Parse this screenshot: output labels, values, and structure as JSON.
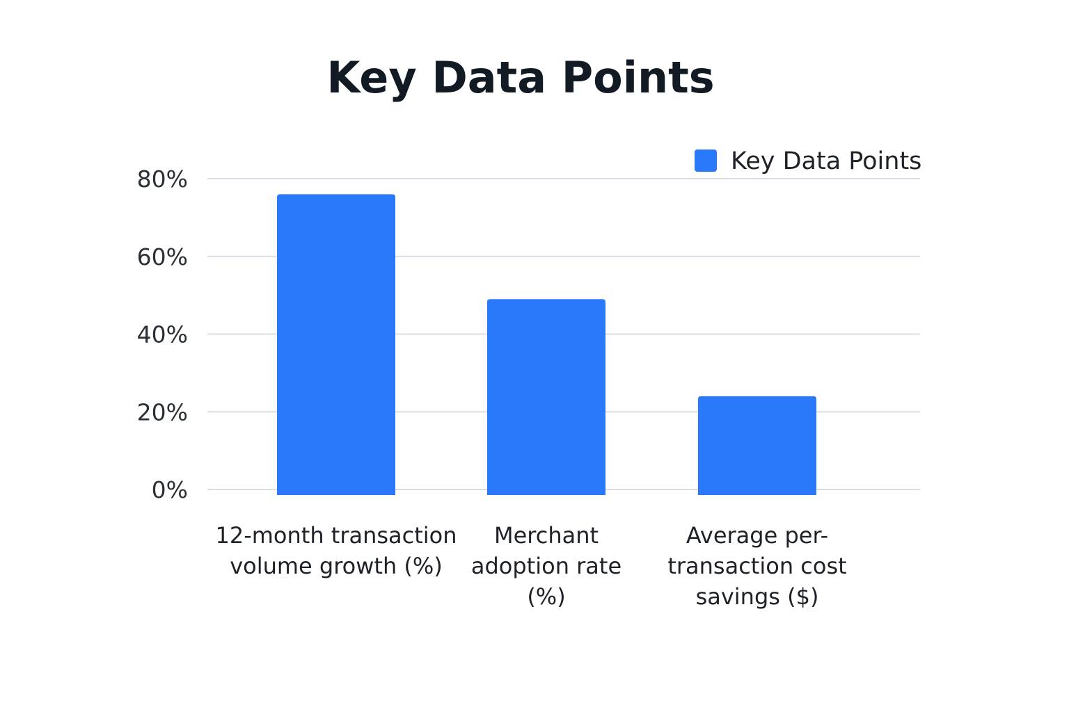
{
  "chart_data": {
    "type": "bar",
    "title": "Key Data Points",
    "categories": [
      [
        "12-month transaction",
        "volume growth (%)"
      ],
      [
        "Merchant",
        "adoption rate",
        "(%)"
      ],
      [
        "Average per-",
        "transaction cost",
        "savings ($)"
      ]
    ],
    "series": [
      {
        "name": "Key Data Points",
        "values": [
          76,
          49,
          24
        ],
        "color": "#2b79fb"
      }
    ],
    "y_ticks": [
      "0%",
      "20%",
      "40%",
      "60%",
      "80%"
    ],
    "ylim": [
      0,
      80
    ],
    "grid": true,
    "legend_position": "top-right"
  }
}
